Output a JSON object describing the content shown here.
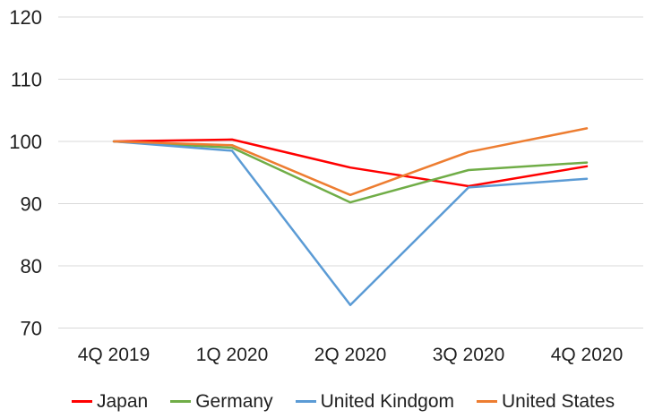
{
  "chart_data": {
    "type": "line",
    "title": "",
    "categories": [
      "4Q 2019",
      "1Q 2020",
      "2Q 2020",
      "3Q 2020",
      "4Q 2020"
    ],
    "series": [
      {
        "name": "Japan",
        "color": "#ff0000",
        "values": [
          100,
          100.3,
          95.8,
          92.8,
          96.0
        ]
      },
      {
        "name": "Germany",
        "color": "#70ad47",
        "values": [
          100,
          99.0,
          90.2,
          95.4,
          96.6
        ]
      },
      {
        "name": "United Kindgom",
        "color": "#5b9bd5",
        "values": [
          100,
          98.5,
          73.7,
          92.6,
          94.0
        ]
      },
      {
        "name": "United States",
        "color": "#ed7d31",
        "values": [
          100,
          99.4,
          91.4,
          98.3,
          102.1
        ]
      }
    ],
    "xlabel": "",
    "ylabel": "",
    "ylim": [
      70,
      120
    ],
    "yticks": [
      120,
      110,
      100,
      90,
      80,
      70
    ],
    "grid": true,
    "legend_position": "bottom",
    "colors": {
      "gridline": "#d9d9d9",
      "text": "#1f1f1f",
      "background": "#ffffff"
    }
  }
}
